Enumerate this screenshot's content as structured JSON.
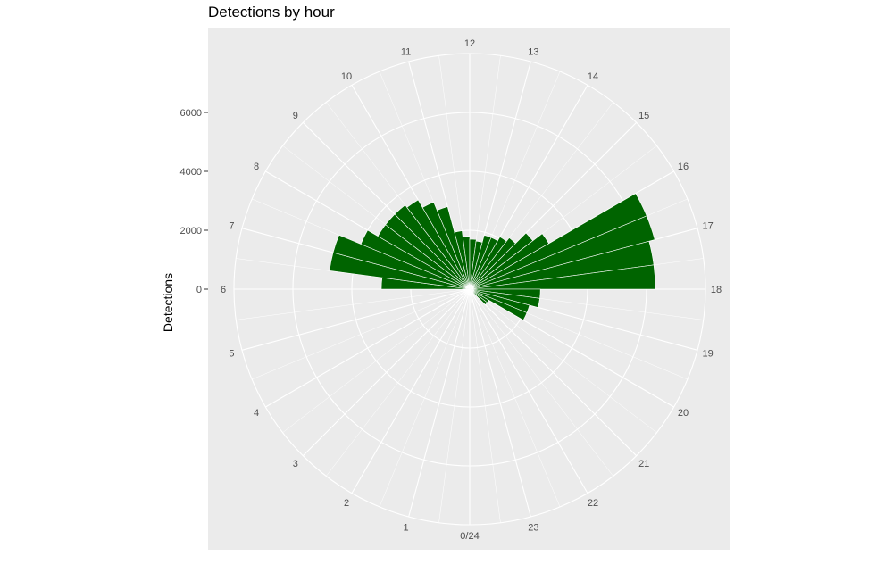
{
  "chart_data": {
    "type": "bar",
    "coord": "polar",
    "title": "Detections by hour",
    "ylabel": "Detections",
    "xlabel": "",
    "y_ticks": [
      0,
      2000,
      4000,
      6000
    ],
    "y_tick_labels": [
      "0",
      "2000",
      "4000",
      "6000"
    ],
    "ylim": [
      0,
      8000
    ],
    "categories": [
      "0/24",
      "1",
      "2",
      "3",
      "4",
      "5",
      "6",
      "7",
      "8",
      "9",
      "10",
      "11",
      "12",
      "13",
      "14",
      "15",
      "16",
      "17",
      "18",
      "19",
      "20",
      "21",
      "22",
      "23"
    ],
    "x": [
      0,
      0.5,
      1,
      1.5,
      2,
      2.5,
      3,
      3.5,
      4,
      4.5,
      5,
      5.5,
      6,
      6.5,
      7,
      7.5,
      8,
      8.5,
      9,
      9.5,
      10,
      10.5,
      11,
      11.5,
      12,
      12.5,
      13,
      13.5,
      14,
      14.5,
      15,
      15.5,
      16,
      16.5,
      17,
      17.5,
      18,
      18.5,
      19,
      19.5,
      20,
      20.5,
      21,
      21.5,
      22,
      22.5,
      23,
      23.5
    ],
    "values": [
      0,
      0,
      0,
      0,
      0,
      0,
      0,
      0,
      0,
      0,
      0,
      0,
      3000,
      4800,
      4800,
      4000,
      3600,
      3600,
      3600,
      3500,
      3200,
      2900,
      2000,
      1800,
      1700,
      1650,
      1900,
      1900,
      2050,
      2200,
      2700,
      3100,
      6500,
      6500,
      6300,
      6300,
      2400,
      2400,
      2100,
      2100,
      750,
      750,
      0,
      0,
      0,
      0,
      0,
      0
    ],
    "bar_color": "#006400",
    "grid": true,
    "legend": "none"
  }
}
